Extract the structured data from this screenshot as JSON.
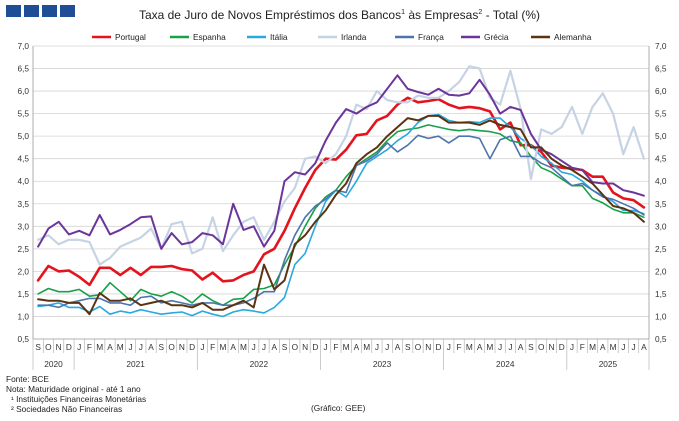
{
  "title_parts": {
    "a": "Taxa de Juro de Novos Empréstimos dos Bancos",
    "sup1": "1",
    "b": " às Empresas",
    "sup2": "2",
    "c": " - Total (%)"
  },
  "footnotes": {
    "source": "Fonte: BCE",
    "note": "Nota: Maturidade original - até 1 ano",
    "n1": "¹ Instituições Financeiras Monetárias",
    "n2": "² Sociedades Não Financeiras"
  },
  "credit": "(Gráfico: GEE)",
  "chart_data": {
    "type": "line",
    "ylim": [
      0.5,
      7.0
    ],
    "y_ticks": [
      "0,5",
      "1,0",
      "1,5",
      "2,0",
      "2,5",
      "3,0",
      "3,5",
      "4,0",
      "4,5",
      "5,0",
      "5,5",
      "6,0",
      "6,5",
      "7,0"
    ],
    "month_labels": [
      "S",
      "O",
      "N",
      "D",
      "J",
      "F",
      "M",
      "A",
      "M",
      "J",
      "J",
      "A",
      "S",
      "O",
      "N",
      "D",
      "J",
      "F",
      "M",
      "A",
      "M",
      "J",
      "J",
      "A",
      "S",
      "O",
      "N",
      "D",
      "J",
      "F",
      "M",
      "A",
      "M",
      "J",
      "J",
      "A",
      "S",
      "O",
      "N",
      "D",
      "J",
      "F",
      "M",
      "A",
      "M",
      "J",
      "J",
      "A",
      "S",
      "O",
      "N",
      "D",
      "J",
      "F",
      "M",
      "A",
      "M",
      "J",
      "J",
      "A"
    ],
    "year_labels": [
      {
        "label": "2020",
        "start": 0,
        "end": 3
      },
      {
        "label": "2021",
        "start": 4,
        "end": 15
      },
      {
        "label": "2022",
        "start": 16,
        "end": 27
      },
      {
        "label": "2023",
        "start": 28,
        "end": 39
      },
      {
        "label": "2024",
        "start": 40,
        "end": 51
      },
      {
        "label": "2025",
        "start": 52,
        "end": 59
      }
    ],
    "x": [
      "2020-09",
      "2020-10",
      "2020-11",
      "2020-12",
      "2021-01",
      "2021-02",
      "2021-03",
      "2021-04",
      "2021-05",
      "2021-06",
      "2021-07",
      "2021-08",
      "2021-09",
      "2021-10",
      "2021-11",
      "2021-12",
      "2022-01",
      "2022-02",
      "2022-03",
      "2022-04",
      "2022-05",
      "2022-06",
      "2022-07",
      "2022-08",
      "2022-09",
      "2022-10",
      "2022-11",
      "2022-12",
      "2023-01",
      "2023-02",
      "2023-03",
      "2023-04",
      "2023-05",
      "2023-06",
      "2023-07",
      "2023-08",
      "2023-09",
      "2023-10",
      "2023-11",
      "2023-12",
      "2024-01",
      "2024-02",
      "2024-03",
      "2024-04",
      "2024-05",
      "2024-06",
      "2024-07",
      "2024-08",
      "2024-09",
      "2024-10",
      "2024-11",
      "2024-12",
      "2025-01",
      "2025-02",
      "2025-03",
      "2025-04",
      "2025-05",
      "2025-06",
      "2025-07",
      "2025-08"
    ],
    "series": [
      {
        "name": "Portugal",
        "color": "#e3141e",
        "width": 2.6,
        "values": [
          1.8,
          2.12,
          2.0,
          2.02,
          1.88,
          1.7,
          2.08,
          2.08,
          1.92,
          2.08,
          1.92,
          2.1,
          2.1,
          2.12,
          2.05,
          2.02,
          1.82,
          1.97,
          1.78,
          1.8,
          1.92,
          2.0,
          2.38,
          2.5,
          2.9,
          3.4,
          3.85,
          4.25,
          4.5,
          4.48,
          4.7,
          5.02,
          5.05,
          5.35,
          5.45,
          5.7,
          5.85,
          5.75,
          5.78,
          5.82,
          5.7,
          5.62,
          5.65,
          5.62,
          5.55,
          5.15,
          5.3,
          4.8,
          4.8,
          4.65,
          4.35,
          4.3,
          4.28,
          4.25,
          4.1,
          4.1,
          3.75,
          3.62,
          3.58,
          3.42
        ]
      },
      {
        "name": "Espanha",
        "color": "#18a04a",
        "width": 1.6,
        "values": [
          1.5,
          1.62,
          1.55,
          1.55,
          1.6,
          1.45,
          1.48,
          1.75,
          1.55,
          1.35,
          1.6,
          1.5,
          1.45,
          1.55,
          1.45,
          1.3,
          1.5,
          1.35,
          1.25,
          1.38,
          1.4,
          1.6,
          1.62,
          1.7,
          2.15,
          2.55,
          3.0,
          3.4,
          3.65,
          3.8,
          4.1,
          4.35,
          4.5,
          4.65,
          4.9,
          5.1,
          5.15,
          5.18,
          5.25,
          5.2,
          5.15,
          5.12,
          5.15,
          5.12,
          5.1,
          5.05,
          4.9,
          4.85,
          4.55,
          4.3,
          4.2,
          4.05,
          3.9,
          3.9,
          3.62,
          3.52,
          3.38,
          3.3,
          3.3,
          3.2
        ]
      },
      {
        "name": "Itália",
        "color": "#2aa9df",
        "width": 1.6,
        "values": [
          1.22,
          1.25,
          1.3,
          1.2,
          1.2,
          1.1,
          1.22,
          1.05,
          1.12,
          1.08,
          1.15,
          1.1,
          1.05,
          1.08,
          1.1,
          1.02,
          1.12,
          1.05,
          1.0,
          1.1,
          1.15,
          1.12,
          1.08,
          1.2,
          1.42,
          2.15,
          2.4,
          3.0,
          3.55,
          3.8,
          3.65,
          4.0,
          4.4,
          4.55,
          4.7,
          4.9,
          5.05,
          5.3,
          5.45,
          5.48,
          5.35,
          5.3,
          5.32,
          5.3,
          5.4,
          5.4,
          5.2,
          4.95,
          4.8,
          4.55,
          4.4,
          4.2,
          4.15,
          4.0,
          3.8,
          3.68,
          3.55,
          3.35,
          3.35,
          3.28
        ]
      },
      {
        "name": "Irlanda",
        "color": "#c6d3e4",
        "width": 2.2,
        "values": [
          2.7,
          2.8,
          2.6,
          2.7,
          2.7,
          2.65,
          2.15,
          2.3,
          2.55,
          2.65,
          2.75,
          2.95,
          2.5,
          3.05,
          3.1,
          2.4,
          2.5,
          3.2,
          2.45,
          2.8,
          3.1,
          3.2,
          2.7,
          3.1,
          3.55,
          3.85,
          4.5,
          4.55,
          4.4,
          4.6,
          5.0,
          5.7,
          5.6,
          6.0,
          5.8,
          5.75,
          5.75,
          5.9,
          5.85,
          5.85,
          6.0,
          6.2,
          6.55,
          6.5,
          5.85,
          5.7,
          6.45,
          5.6,
          4.05,
          5.15,
          5.05,
          5.2,
          5.65,
          5.05,
          5.65,
          5.95,
          5.5,
          4.6,
          5.2,
          4.5
        ]
      },
      {
        "name": "França",
        "color": "#4d74ad",
        "width": 1.6,
        "values": [
          1.25,
          1.25,
          1.2,
          1.3,
          1.35,
          1.4,
          1.4,
          1.3,
          1.3,
          1.25,
          1.42,
          1.45,
          1.3,
          1.35,
          1.3,
          1.25,
          1.3,
          1.3,
          1.25,
          1.25,
          1.3,
          1.4,
          1.55,
          1.55,
          2.25,
          2.8,
          3.2,
          3.45,
          3.6,
          3.8,
          3.75,
          4.35,
          4.45,
          4.6,
          4.85,
          4.65,
          4.8,
          5.02,
          4.95,
          5.0,
          4.85,
          5.0,
          5.0,
          4.95,
          4.5,
          4.92,
          5.0,
          4.55,
          4.55,
          4.4,
          4.3,
          4.1,
          3.9,
          3.95,
          3.8,
          3.65,
          3.6,
          3.5,
          3.4,
          3.25
        ]
      },
      {
        "name": "Grécia",
        "color": "#6b359a",
        "width": 2.0,
        "values": [
          2.55,
          2.95,
          3.1,
          2.82,
          2.9,
          2.8,
          3.25,
          2.82,
          2.92,
          3.05,
          3.2,
          3.22,
          2.5,
          2.85,
          2.6,
          2.65,
          2.85,
          2.8,
          2.6,
          3.5,
          2.92,
          3.0,
          2.55,
          2.9,
          4.0,
          4.2,
          4.15,
          4.4,
          4.9,
          5.3,
          5.6,
          5.5,
          5.65,
          5.75,
          6.05,
          6.35,
          6.05,
          5.98,
          5.92,
          6.05,
          5.92,
          5.9,
          5.95,
          6.25,
          5.92,
          5.5,
          5.65,
          5.58,
          5.05,
          4.7,
          4.6,
          4.45,
          4.3,
          4.25,
          3.98,
          3.95,
          3.95,
          3.8,
          3.75,
          3.68
        ]
      },
      {
        "name": "Alemanha",
        "color": "#5a3411",
        "width": 2.0,
        "values": [
          1.38,
          1.35,
          1.35,
          1.3,
          1.3,
          1.05,
          1.52,
          1.35,
          1.35,
          1.4,
          1.25,
          1.3,
          1.35,
          1.25,
          1.25,
          1.2,
          1.3,
          1.15,
          1.15,
          1.25,
          1.35,
          1.2,
          2.15,
          1.6,
          1.8,
          2.6,
          2.8,
          3.1,
          3.35,
          3.7,
          3.95,
          4.4,
          4.6,
          4.75,
          5.0,
          5.2,
          5.4,
          5.35,
          5.45,
          5.45,
          5.3,
          5.3,
          5.3,
          5.25,
          5.35,
          5.25,
          5.2,
          5.15,
          4.75,
          4.75,
          4.5,
          4.35,
          4.25,
          4.1,
          3.95,
          3.7,
          3.45,
          3.4,
          3.3,
          3.1
        ]
      }
    ]
  }
}
